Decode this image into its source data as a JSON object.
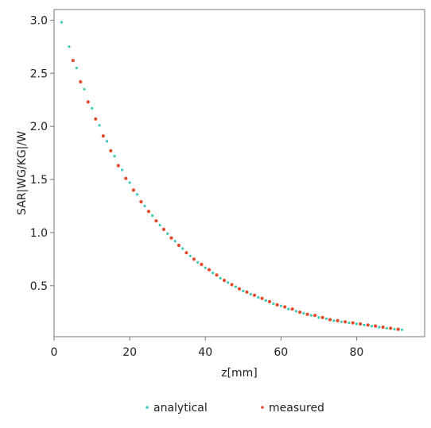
{
  "chart_data": {
    "type": "scatter",
    "xlabel": "z[mm]",
    "ylabel": "SAR|WG/KG|/W",
    "xlim": [
      0,
      98
    ],
    "ylim": [
      0.02,
      3.1
    ],
    "xticks": [
      "0",
      "20",
      "40",
      "60",
      "80"
    ],
    "xtick_values": [
      0,
      20,
      40,
      60,
      80
    ],
    "yticks": [
      "0.5",
      "1.0",
      "1.5",
      "2.0",
      "2.5",
      "3.0"
    ],
    "ytick_values": [
      0.5,
      1.0,
      1.5,
      2.0,
      2.5,
      3.0
    ],
    "legend_position": "bottom",
    "series": [
      {
        "name": "analytical",
        "color": "#3cc9b4",
        "x": [
          2,
          4,
          6,
          8,
          10,
          12,
          14,
          16,
          18,
          20,
          22,
          24,
          26,
          28,
          30,
          32,
          34,
          36,
          38,
          40,
          42,
          44,
          46,
          48,
          50,
          52,
          54,
          56,
          58,
          60,
          62,
          64,
          66,
          68,
          70,
          72,
          74,
          76,
          78,
          80,
          82,
          84,
          86,
          88,
          90,
          92
        ],
        "y": [
          2.98,
          2.75,
          2.55,
          2.35,
          2.17,
          2.01,
          1.86,
          1.72,
          1.59,
          1.47,
          1.36,
          1.25,
          1.16,
          1.07,
          0.99,
          0.92,
          0.85,
          0.78,
          0.72,
          0.67,
          0.62,
          0.57,
          0.53,
          0.49,
          0.45,
          0.42,
          0.39,
          0.36,
          0.33,
          0.31,
          0.28,
          0.26,
          0.24,
          0.22,
          0.2,
          0.19,
          0.17,
          0.16,
          0.15,
          0.14,
          0.13,
          0.12,
          0.11,
          0.1,
          0.09,
          0.085
        ]
      },
      {
        "name": "measured",
        "color": "#e04a2a",
        "x": [
          5,
          7,
          9,
          11,
          13,
          15,
          17,
          19,
          21,
          23,
          25,
          27,
          29,
          31,
          33,
          35,
          37,
          39,
          41,
          43,
          45,
          47,
          49,
          51,
          53,
          55,
          57,
          59,
          61,
          63,
          65,
          67,
          69,
          71,
          73,
          75,
          77,
          79,
          81,
          83,
          85,
          87,
          89,
          91
        ],
        "y": [
          2.62,
          2.42,
          2.23,
          2.07,
          1.91,
          1.77,
          1.63,
          1.51,
          1.4,
          1.29,
          1.2,
          1.11,
          1.03,
          0.95,
          0.88,
          0.81,
          0.75,
          0.7,
          0.65,
          0.6,
          0.55,
          0.51,
          0.47,
          0.44,
          0.41,
          0.38,
          0.35,
          0.32,
          0.3,
          0.28,
          0.25,
          0.23,
          0.22,
          0.2,
          0.18,
          0.17,
          0.16,
          0.15,
          0.14,
          0.13,
          0.12,
          0.11,
          0.1,
          0.09
        ]
      }
    ]
  }
}
